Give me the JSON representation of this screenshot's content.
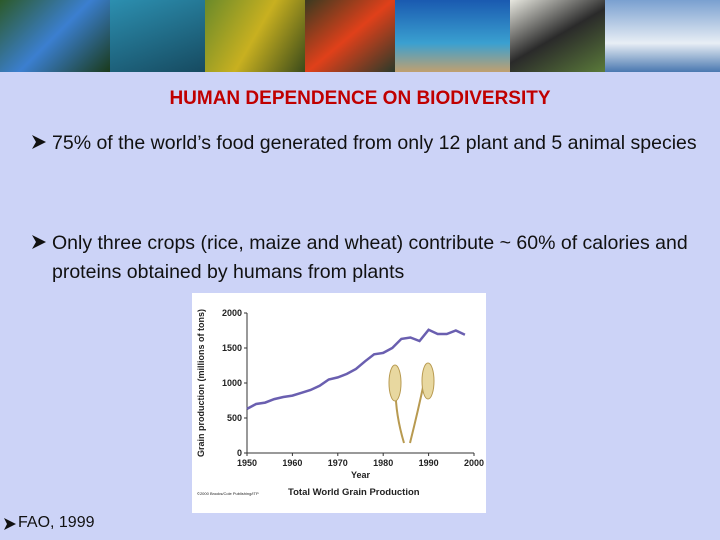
{
  "header": {
    "title": "HUMAN DEPENDENCE ON BIODIVERSITY"
  },
  "bullets": [
    "75%  of the world’s food generated from only 12 plant and 5 animal species",
    "Only three crops (rice, maize and wheat) contribute ~ 60% of calories and proteins obtained by humans from plants"
  ],
  "chart": {
    "type": "line",
    "title": "Total World Grain Production",
    "x_label": "Year",
    "y_label": "Grain production (millions of tons)",
    "credit": "©2000 Brooks/Cole Publishing/ITP",
    "x": [
      1950,
      1952,
      1954,
      1956,
      1958,
      1960,
      1962,
      1964,
      1966,
      1968,
      1970,
      1972,
      1974,
      1976,
      1978,
      1980,
      1982,
      1984,
      1986,
      1988,
      1990,
      1992,
      1994,
      1996,
      1998
    ],
    "values": [
      630,
      700,
      720,
      770,
      800,
      820,
      860,
      900,
      960,
      1050,
      1080,
      1130,
      1200,
      1310,
      1410,
      1430,
      1500,
      1630,
      1650,
      1600,
      1760,
      1700,
      1700,
      1750,
      1690
    ],
    "color": "#6a5fb0",
    "xlim": [
      1950,
      2000
    ],
    "xticks": [
      1950,
      1960,
      1970,
      1980,
      1990,
      2000
    ],
    "ylim": [
      0,
      2000
    ],
    "yticks": [
      0,
      500,
      1000,
      1500,
      2000
    ]
  },
  "source": "FAO, 1999"
}
